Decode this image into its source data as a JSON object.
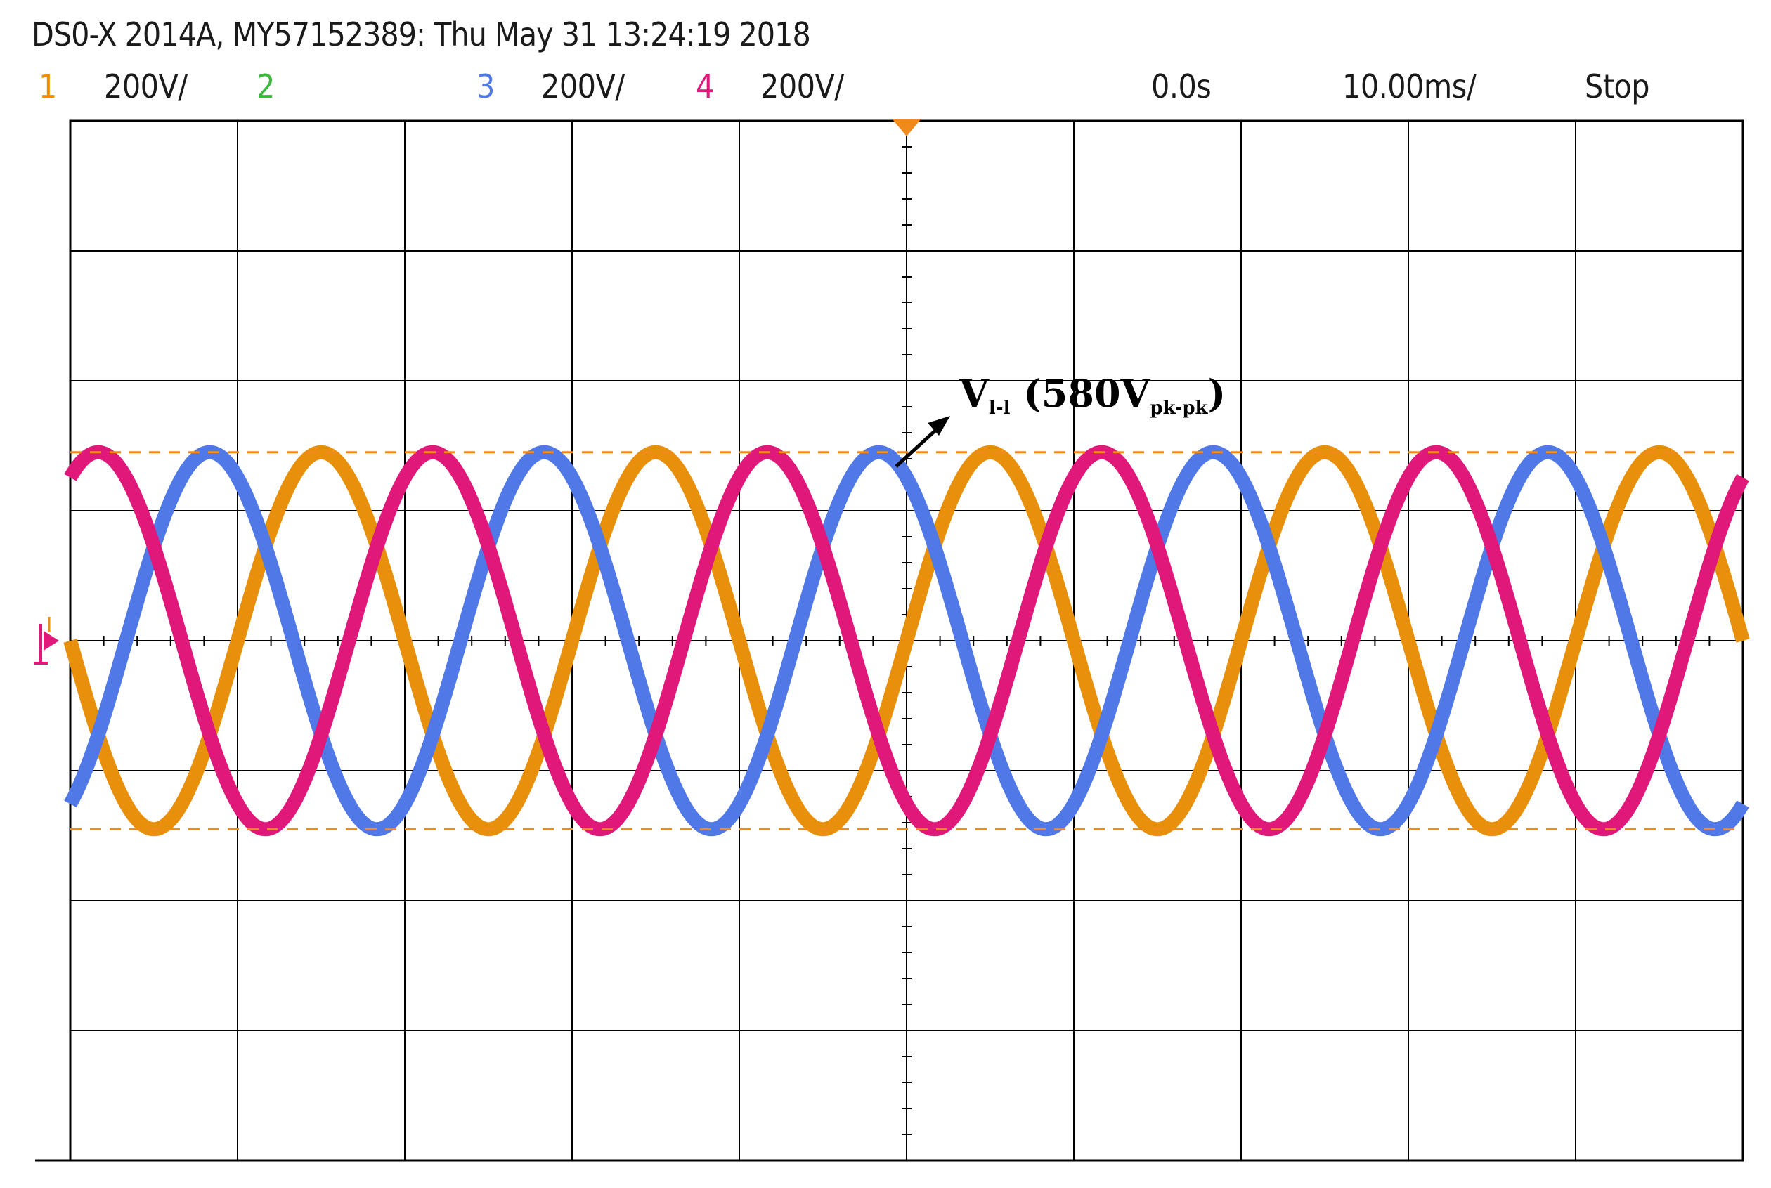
{
  "header": {
    "title": "DS0-X 2014A, MY57152389: Thu May 31 13:24:19 2018"
  },
  "status": {
    "ch1": {
      "num": "1",
      "scale": "200V/",
      "color": "#E8900C"
    },
    "ch2": {
      "num": "2",
      "scale": "",
      "color": "#3DB83D"
    },
    "ch3": {
      "num": "3",
      "scale": "200V/",
      "color": "#5078E6"
    },
    "ch4": {
      "num": "4",
      "scale": "200V/",
      "color": "#E0187A"
    },
    "time_offset": "0.0s",
    "timebase": "10.00ms/",
    "run_state": "Stop"
  },
  "annotation": {
    "main": "V",
    "sub1": "l-l",
    "value": " (580V",
    "sub2": "pk-pk",
    "close": ")"
  },
  "chart_data": {
    "type": "line",
    "title": "",
    "xlabel": "",
    "ylabel": "",
    "grid": true,
    "x_range_ms": [
      -50,
      50
    ],
    "y_range_V": [
      -800,
      800
    ],
    "period_ms": 20,
    "series": [
      {
        "channel": "1",
        "color": "#E8900C",
        "amplitude_V": 290,
        "phase_deg": 0
      },
      {
        "channel": "3",
        "color": "#5078E6",
        "amplitude_V": 290,
        "phase_deg": 240
      },
      {
        "channel": "4",
        "color": "#E0187A",
        "amplitude_V": 290,
        "phase_deg": 120
      }
    ],
    "cursors_V": [
      290,
      -290
    ],
    "cursor_color": "#F08A1C"
  }
}
